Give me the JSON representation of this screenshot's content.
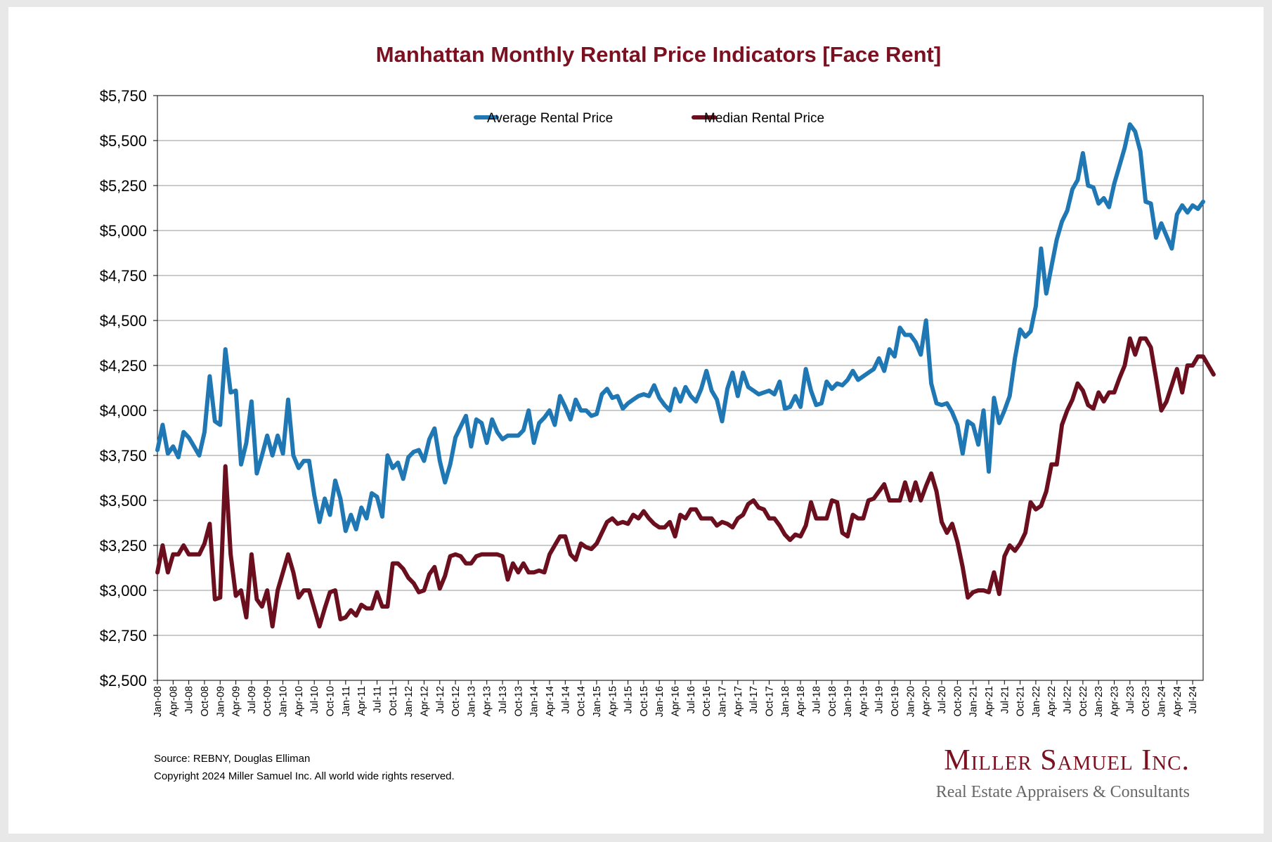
{
  "chart_data": {
    "type": "line",
    "title": "Manhattan Monthly Rental Price Indicators [Face Rent]",
    "xlabel": "",
    "ylabel": "",
    "ylim": [
      2500,
      5750
    ],
    "y_ticks": [
      "$2,500",
      "$2,750",
      "$3,000",
      "$3,250",
      "$3,500",
      "$3,750",
      "$4,000",
      "$4,250",
      "$4,500",
      "$4,750",
      "$5,000",
      "$5,250",
      "$5,500",
      "$5,750"
    ],
    "x_tick_labels": [
      "Jan-08",
      "Apr-08",
      "Jul-08",
      "Oct-08",
      "Jan-09",
      "Apr-09",
      "Jul-09",
      "Oct-09",
      "Jan-10",
      "Apr-10",
      "Jul-10",
      "Oct-10",
      "Jan-11",
      "Apr-11",
      "Jul-11",
      "Oct-11",
      "Jan-12",
      "Apr-12",
      "Jul-12",
      "Oct-12",
      "Jan-13",
      "Apr-13",
      "Jul-13",
      "Oct-13",
      "Jan-14",
      "Apr-14",
      "Jul-14",
      "Oct-14",
      "Jan-15",
      "Apr-15",
      "Jul-15",
      "Oct-15",
      "Jan-16",
      "Apr-16",
      "Jul-16",
      "Oct-16",
      "Jan-17",
      "Apr-17",
      "Jul-17",
      "Oct-17",
      "Jan-18",
      "Apr-18",
      "Jul-18",
      "Oct-18",
      "Jan-19",
      "Apr-19",
      "Jul-19",
      "Oct-19",
      "Jan-20",
      "Apr-20",
      "Jul-20",
      "Oct-20",
      "Jan-21",
      "Apr-21",
      "Jul-21",
      "Oct-21",
      "Jan-22",
      "Apr-22",
      "Jul-22",
      "Oct-22",
      "Jan-23",
      "Apr-23",
      "Jul-23",
      "Oct-23",
      "Jan-24",
      "Apr-24",
      "Jul-24"
    ],
    "grid": true,
    "legend_position": "top-center",
    "series": [
      {
        "name": "Average Rental Price",
        "color": "#1f78b4",
        "values": [
          3780,
          3920,
          3760,
          3800,
          3740,
          3880,
          3850,
          3800,
          3750,
          3880,
          4190,
          3940,
          3920,
          4340,
          4100,
          4110,
          3700,
          3820,
          4050,
          3650,
          3750,
          3860,
          3750,
          3860,
          3760,
          4060,
          3750,
          3680,
          3720,
          3720,
          3530,
          3380,
          3510,
          3420,
          3610,
          3510,
          3330,
          3420,
          3340,
          3460,
          3400,
          3540,
          3520,
          3410,
          3750,
          3680,
          3710,
          3620,
          3740,
          3770,
          3780,
          3720,
          3840,
          3900,
          3720,
          3600,
          3700,
          3850,
          3910,
          3970,
          3800,
          3950,
          3930,
          3820,
          3950,
          3880,
          3840,
          3860,
          3860,
          3860,
          3890,
          4000,
          3820,
          3930,
          3960,
          4000,
          3920,
          4080,
          4020,
          3950,
          4060,
          4000,
          4000,
          3970,
          3980,
          4090,
          4120,
          4070,
          4080,
          4010,
          4040,
          4060,
          4080,
          4090,
          4080,
          4140,
          4070,
          4030,
          4000,
          4120,
          4050,
          4130,
          4080,
          4050,
          4120,
          4220,
          4110,
          4060,
          3940,
          4120,
          4210,
          4080,
          4210,
          4130,
          4110,
          4090,
          4100,
          4110,
          4090,
          4160,
          4010,
          4020,
          4080,
          4020,
          4230,
          4110,
          4030,
          4040,
          4160,
          4120,
          4150,
          4140,
          4170,
          4220,
          4170,
          4190,
          4210,
          4230,
          4290,
          4220,
          4340,
          4300,
          4460,
          4420,
          4420,
          4380,
          4310,
          4500,
          4150,
          4040,
          4030,
          4040,
          3990,
          3920,
          3760,
          3940,
          3920,
          3810,
          4000,
          3660,
          4070,
          3930,
          4000,
          4080,
          4290,
          4450,
          4410,
          4440,
          4580,
          4900,
          4650,
          4800,
          4950,
          5050,
          5110,
          5230,
          5280,
          5430,
          5250,
          5240,
          5150,
          5180,
          5130,
          5260,
          5360,
          5460,
          5590,
          5550,
          5440,
          5160,
          5150,
          4960,
          5040,
          4970,
          4900,
          5090,
          5140,
          5100,
          5140,
          5120,
          5160
        ]
      },
      {
        "name": "Median Rental Price",
        "color": "#6b0f1f",
        "values": [
          3100,
          3250,
          3100,
          3200,
          3200,
          3250,
          3200,
          3200,
          3200,
          3260,
          3370,
          2950,
          2960,
          3690,
          3200,
          2970,
          3000,
          2850,
          3200,
          2950,
          2910,
          3000,
          2800,
          3000,
          3100,
          3200,
          3100,
          2960,
          3000,
          3000,
          2900,
          2800,
          2900,
          2990,
          3000,
          2840,
          2850,
          2890,
          2860,
          2920,
          2900,
          2900,
          2990,
          2910,
          2910,
          3150,
          3150,
          3120,
          3070,
          3040,
          2990,
          3000,
          3090,
          3130,
          3010,
          3080,
          3190,
          3200,
          3190,
          3150,
          3150,
          3190,
          3200,
          3200,
          3200,
          3200,
          3190,
          3060,
          3150,
          3100,
          3150,
          3100,
          3100,
          3110,
          3100,
          3200,
          3250,
          3300,
          3300,
          3200,
          3170,
          3260,
          3240,
          3230,
          3260,
          3320,
          3380,
          3400,
          3370,
          3380,
          3370,
          3420,
          3400,
          3440,
          3400,
          3370,
          3350,
          3350,
          3380,
          3300,
          3420,
          3400,
          3450,
          3450,
          3400,
          3400,
          3400,
          3360,
          3380,
          3370,
          3350,
          3400,
          3420,
          3480,
          3500,
          3460,
          3450,
          3400,
          3400,
          3360,
          3310,
          3280,
          3310,
          3300,
          3360,
          3490,
          3400,
          3400,
          3400,
          3500,
          3490,
          3320,
          3300,
          3420,
          3400,
          3400,
          3500,
          3510,
          3550,
          3590,
          3500,
          3500,
          3500,
          3600,
          3500,
          3600,
          3500,
          3580,
          3650,
          3550,
          3380,
          3320,
          3370,
          3270,
          3130,
          2960,
          2990,
          3000,
          3000,
          2990,
          3100,
          2980,
          3190,
          3250,
          3220,
          3260,
          3320,
          3490,
          3450,
          3470,
          3550,
          3700,
          3700,
          3920,
          4000,
          4060,
          4150,
          4110,
          4030,
          4010,
          4100,
          4050,
          4100,
          4100,
          4180,
          4250,
          4400,
          4310,
          4400,
          4400,
          4350,
          4180,
          4000,
          4050,
          4140,
          4230,
          4100,
          4250,
          4250,
          4300,
          4300,
          4250,
          4200
        ]
      }
    ]
  },
  "footer": {
    "source": "Source: REBNY, Douglas Elliman",
    "copyright": "Copyright 2024 Miller Samuel Inc.  All world wide rights reserved."
  },
  "logo": {
    "name": "Miller Samuel Inc.",
    "tagline": "Real Estate Appraisers & Consultants"
  }
}
